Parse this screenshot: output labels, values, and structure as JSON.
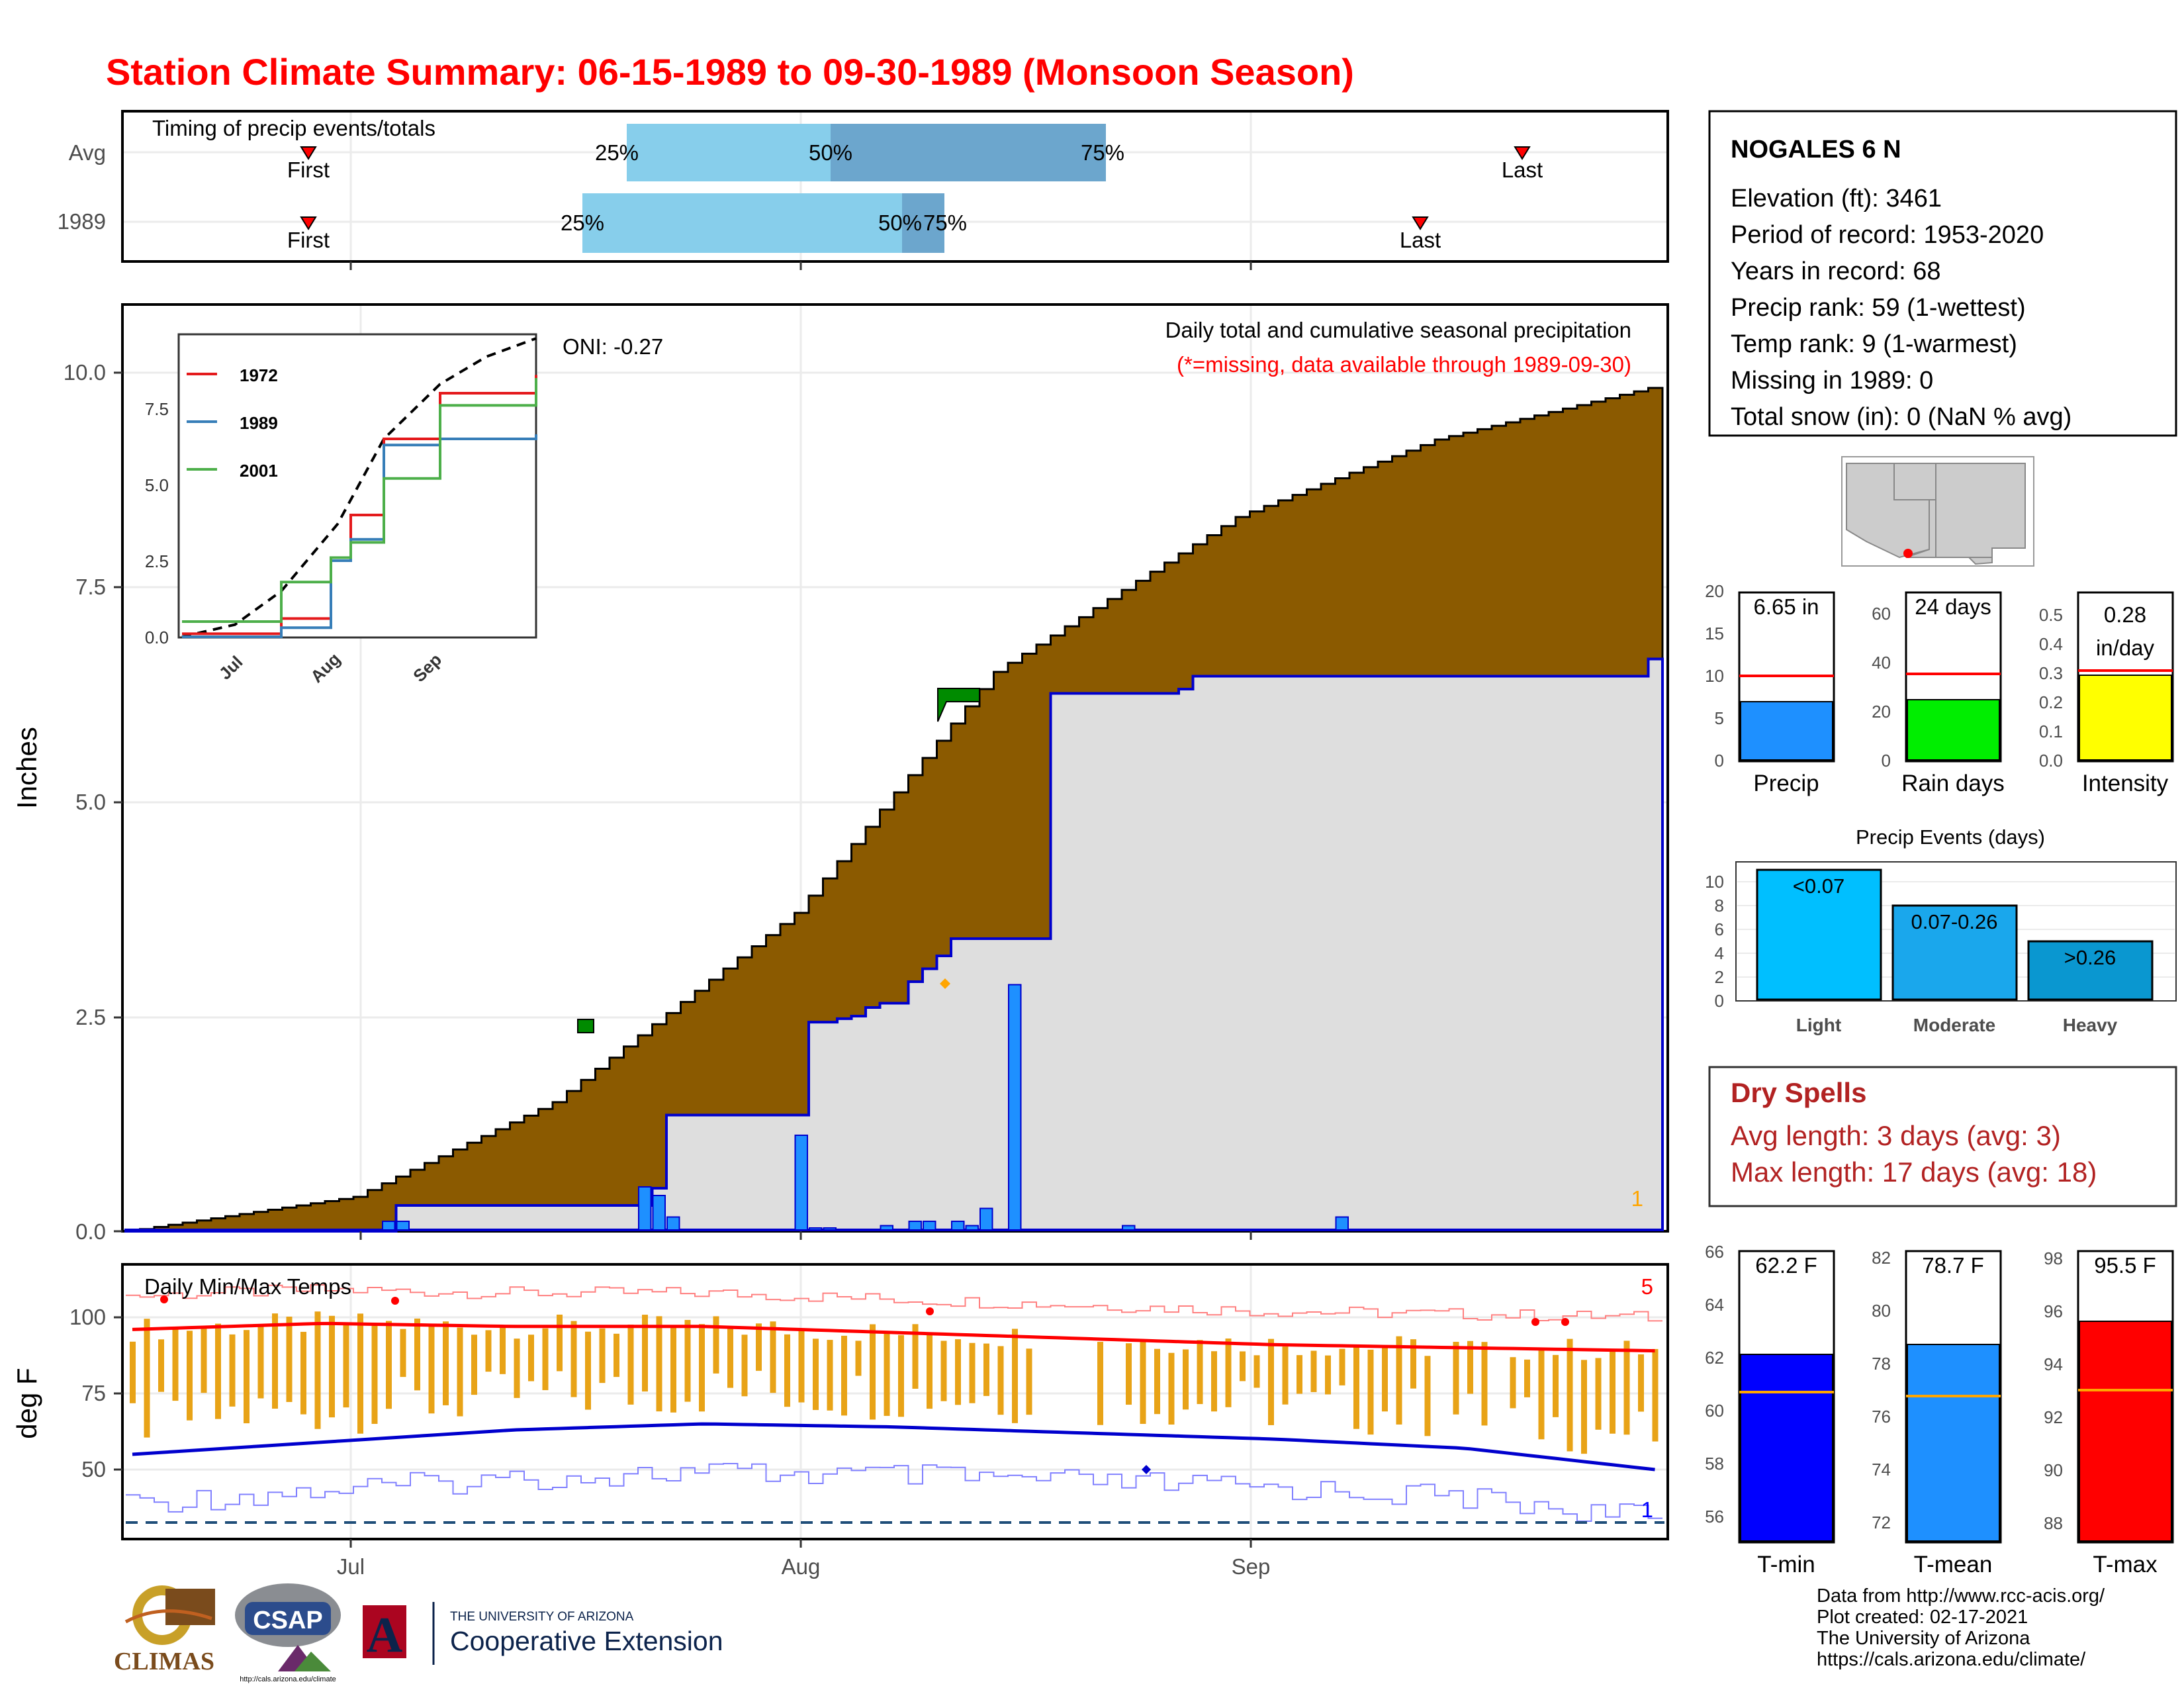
{
  "title": "Station Climate Summary: 06-15-1989 to 09-30-1989 (Monsoon Season)",
  "timing": {
    "heading": "Timing of precip events/totals",
    "rows": [
      {
        "label": "Avg",
        "first": "First",
        "last": "Last",
        "q25": "25%",
        "q50": "50%",
        "q75": "75%"
      },
      {
        "label": "1989",
        "first": "First",
        "last": "Last",
        "q25": "25%",
        "q50": "50%",
        "q75": "75%"
      }
    ]
  },
  "main_panel": {
    "ylabel": "Inches",
    "oni": "ONI: -0.27",
    "caption": "Daily total and cumulative seasonal precipitation",
    "missing_note": "(*=missing, data available through 1989-09-30)",
    "corner_count": "1",
    "yticks": [
      "0.0",
      "2.5",
      "5.0",
      "7.5",
      "10.0"
    ]
  },
  "inset": {
    "yticks": [
      "0.0",
      "2.5",
      "5.0",
      "7.5"
    ],
    "xticks": [
      "Jul",
      "Aug",
      "Sep"
    ],
    "legend": [
      "1972",
      "1989",
      "2001"
    ]
  },
  "temp_panel": {
    "ylabel": "deg F",
    "heading": "Daily Min/Max Temps",
    "count_top": "5",
    "count_bottom": "1",
    "yticks": [
      "50",
      "75",
      "100"
    ]
  },
  "xaxis": {
    "ticks": [
      "Jul",
      "Aug",
      "Sep"
    ]
  },
  "station": {
    "name": "NOGALES 6 N",
    "lines": [
      "Elevation (ft): 3461",
      "Period of record: 1953-2020",
      "Years in record: 68",
      "Precip rank: 59 (1-wettest)",
      "Temp rank: 9 (1-warmest)",
      "Missing in 1989: 0",
      "Total snow (in): 0 (NaN % avg)"
    ]
  },
  "mini_bars": [
    {
      "label": "Precip",
      "value_text": "6.65 in",
      "ticks": [
        "0",
        "5",
        "10",
        "15",
        "20"
      ],
      "color": "#1e90ff"
    },
    {
      "label": "Rain days",
      "value_text": "24 days",
      "ticks": [
        "0",
        "20",
        "40",
        "60"
      ],
      "color": "#00ee00"
    },
    {
      "label": "Intensity",
      "value_text_1": "0.28",
      "value_text_2": "in/day",
      "ticks": [
        "0.0",
        "0.1",
        "0.2",
        "0.3",
        "0.4",
        "0.5"
      ],
      "color": "#ffff00"
    }
  ],
  "events": {
    "title": "Precip Events (days)",
    "ticks": [
      "0",
      "2",
      "4",
      "6",
      "8",
      "10"
    ],
    "bars": [
      {
        "category": "Light",
        "label": "<0.07",
        "value": 11,
        "color": "#00bfff"
      },
      {
        "category": "Moderate",
        "label": "0.07-0.26",
        "value": 8,
        "color": "#1aa7ec"
      },
      {
        "category": "Heavy",
        "label": ">0.26",
        "value": 5,
        "color": "#0a97d0"
      }
    ]
  },
  "dry_spells": {
    "title": "Dry Spells",
    "avg": "Avg length: 3 days (avg: 3)",
    "max": "Max length: 17 days (avg: 18)"
  },
  "temp_bars": [
    {
      "label": "T-min",
      "value_text": "62.2 F",
      "ticks": [
        "56",
        "58",
        "60",
        "62",
        "64",
        "66"
      ],
      "color": "#0000ff"
    },
    {
      "label": "T-mean",
      "value_text": "78.7 F",
      "ticks": [
        "72",
        "74",
        "76",
        "78",
        "80",
        "82"
      ],
      "color": "#1e90ff"
    },
    {
      "label": "T-max",
      "value_text": "95.5 F",
      "ticks": [
        "88",
        "90",
        "92",
        "94",
        "96",
        "98"
      ],
      "color": "#ff0000"
    }
  ],
  "footer": {
    "lines": [
      "Data from http://www.rcc-acis.org/",
      "Plot created: 02-17-2021",
      "The University of Arizona",
      "https://cals.arizona.edu/climate/"
    ]
  },
  "logos": {
    "climas": "CLIMAS",
    "csap": "CSAP",
    "csap_url": "http://cals.arizona.edu/climate",
    "ua_small": "THE UNIVERSITY OF ARIZONA",
    "ua_big": "Cooperative Extension",
    "ua_letter": "A"
  },
  "chart_data": [
    {
      "type": "area",
      "title": "Daily total and cumulative seasonal precipitation",
      "ylabel": "Inches",
      "ylim": [
        0,
        10.8
      ],
      "xlim": [
        "06-15",
        "09-30"
      ],
      "series": [
        {
          "name": "1989",
          "x": [
            "06-15",
            "07-03",
            "07-04",
            "07-05",
            "07-06",
            "07-21",
            "07-22",
            "07-23",
            "08-01",
            "08-02",
            "08-03",
            "08-04",
            "08-05",
            "08-06",
            "08-07",
            "08-09",
            "08-10",
            "08-11",
            "08-12",
            "08-19",
            "08-28",
            "08-29",
            "09-30"
          ],
          "values": [
            0.0,
            0.0,
            0.3,
            0.3,
            0.3,
            0.3,
            0.5,
            1.35,
            1.35,
            2.43,
            2.43,
            2.47,
            2.5,
            2.6,
            2.65,
            2.9,
            3.05,
            3.2,
            3.4,
            6.25,
            6.3,
            6.45,
            6.65
          ]
        },
        {
          "name": "Avg",
          "x": [
            "06-15",
            "07-01",
            "07-15",
            "08-01",
            "08-15",
            "09-01",
            "09-15",
            "09-30"
          ],
          "values": [
            0.0,
            0.4,
            1.5,
            3.7,
            6.5,
            8.3,
            9.2,
            9.8
          ]
        }
      ],
      "daily_values": [
        {
          "date": "07-03",
          "value": 0.1
        },
        {
          "date": "07-04",
          "value": 0.1
        },
        {
          "date": "07-21",
          "value": 0.5
        },
        {
          "date": "07-22",
          "value": 0.4
        },
        {
          "date": "07-23",
          "value": 0.15
        },
        {
          "date": "08-01",
          "value": 1.1
        },
        {
          "date": "08-02",
          "value": 0.01
        },
        {
          "date": "08-03",
          "value": 0.01
        },
        {
          "date": "08-07",
          "value": 0.05
        },
        {
          "date": "08-09",
          "value": 0.1
        },
        {
          "date": "08-10",
          "value": 0.1
        },
        {
          "date": "08-12",
          "value": 0.1
        },
        {
          "date": "08-13",
          "value": 0.05
        },
        {
          "date": "08-14",
          "value": 0.25
        },
        {
          "date": "08-16",
          "value": 2.85
        },
        {
          "date": "08-24",
          "value": 0.05
        },
        {
          "date": "09-08",
          "value": 0.15
        }
      ]
    },
    {
      "type": "line",
      "ylim": [
        0,
        10.5
      ],
      "series": [
        {
          "name": "1972",
          "x": [
            "06-15",
            "07-15",
            "07-30",
            "08-05",
            "08-15",
            "09-01",
            "09-30"
          ],
          "values": [
            0.1,
            0.6,
            2.5,
            4.0,
            6.5,
            8.0,
            8.6
          ]
        },
        {
          "name": "1989",
          "x": [
            "06-15",
            "07-15",
            "07-30",
            "08-05",
            "08-15",
            "09-01",
            "09-30"
          ],
          "values": [
            0.0,
            0.3,
            2.5,
            3.2,
            6.3,
            6.5,
            6.65
          ]
        },
        {
          "name": "2001",
          "x": [
            "06-15",
            "07-15",
            "07-30",
            "08-05",
            "08-15",
            "09-01",
            "09-30"
          ],
          "values": [
            0.5,
            1.8,
            2.6,
            3.1,
            5.2,
            7.6,
            8.5
          ]
        },
        {
          "name": "Avg",
          "x": [
            "06-15",
            "07-01",
            "07-15",
            "08-01",
            "08-15",
            "09-01",
            "09-15",
            "09-30"
          ],
          "values": [
            0.0,
            0.4,
            1.5,
            3.7,
            6.5,
            8.3,
            9.2,
            9.8
          ]
        }
      ]
    },
    {
      "type": "bar",
      "title": "Daily Min/Max Temps",
      "ylabel": "deg F",
      "ylim": [
        30,
        118
      ],
      "series": [
        {
          "name": "avg max",
          "values": [
            96,
            98,
            97,
            97,
            95,
            93,
            91,
            90,
            89
          ]
        },
        {
          "name": "avg min",
          "values": [
            55,
            59,
            63,
            65,
            64,
            62,
            60,
            57,
            50
          ]
        }
      ]
    },
    {
      "type": "bar",
      "categories": [
        "Light",
        "Moderate",
        "Heavy"
      ],
      "values": [
        11,
        8,
        5
      ],
      "title": "Precip Events (days)"
    },
    {
      "type": "bar",
      "categories": [
        "Precip",
        "Rain days",
        "Intensity"
      ],
      "values": [
        6.65,
        24,
        0.28
      ],
      "reference": [
        10,
        35,
        0.29
      ]
    },
    {
      "type": "bar",
      "categories": [
        "T-min",
        "T-mean",
        "T-max"
      ],
      "values": [
        62.2,
        78.7,
        95.5
      ],
      "reference": [
        60.7,
        76.8,
        92.9
      ]
    }
  ]
}
